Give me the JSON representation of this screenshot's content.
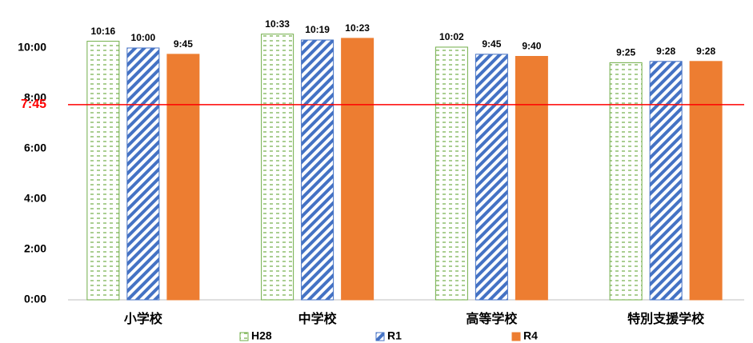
{
  "chart_data": {
    "type": "bar",
    "categories": [
      "小学校",
      "中学校",
      "高等学校",
      "特別支援学校"
    ],
    "series": [
      {
        "name": "H28",
        "color": "#70ad47",
        "pattern": "dashes",
        "values": [
          616,
          633,
          602,
          565
        ],
        "value_labels": [
          "10:16",
          "10:33",
          "10:02",
          "9:25"
        ]
      },
      {
        "name": "R1",
        "color": "#4472c4",
        "pattern": "diagonal",
        "values": [
          600,
          619,
          585,
          568
        ],
        "value_labels": [
          "10:00",
          "10:19",
          "9:45",
          "9:28"
        ]
      },
      {
        "name": "R4",
        "color": "#ed7d31",
        "pattern": "solid",
        "values": [
          585,
          623,
          580,
          568
        ],
        "value_labels": [
          "9:45",
          "10:23",
          "9:40",
          "9:28"
        ]
      }
    ],
    "ylim": [
      0,
      660
    ],
    "yticks": [
      {
        "value": 0,
        "label": "0:00"
      },
      {
        "value": 120,
        "label": "2:00"
      },
      {
        "value": 240,
        "label": "4:00"
      },
      {
        "value": 360,
        "label": "6:00"
      },
      {
        "value": 480,
        "label": "8:00"
      },
      {
        "value": 600,
        "label": "10:00"
      }
    ],
    "reference_line": {
      "value": 465,
      "label": "7:45",
      "color": "#ff0000"
    },
    "grid": false,
    "legend": "bottom"
  }
}
